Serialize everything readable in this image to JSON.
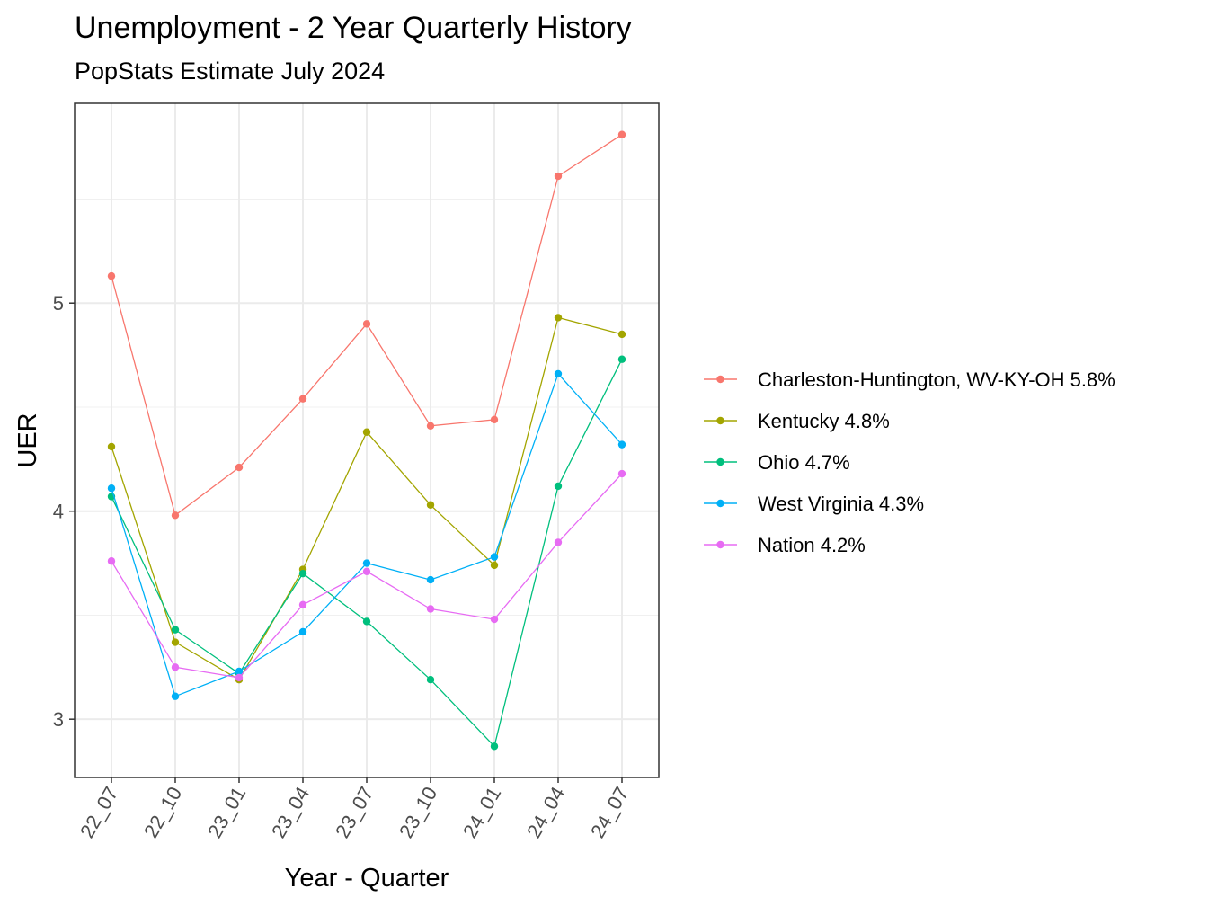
{
  "chart_data": {
    "type": "line",
    "title": "Unemployment - 2 Year Quarterly History",
    "subtitle": "PopStats Estimate July 2024",
    "xlabel": "Year - Quarter",
    "ylabel": "UER",
    "categories": [
      "22_07",
      "22_10",
      "23_01",
      "23_04",
      "23_07",
      "23_10",
      "24_01",
      "24_04",
      "24_07"
    ],
    "y_ticks": [
      3,
      4,
      5
    ],
    "ylim": [
      2.72,
      5.96
    ],
    "grid": true,
    "legend_position": "right",
    "series": [
      {
        "name": "Charleston-Huntington, WV-KY-OH 5.8%",
        "color": "#F8766D",
        "values": [
          5.13,
          3.98,
          4.21,
          4.54,
          4.9,
          4.41,
          4.44,
          5.61,
          5.81
        ]
      },
      {
        "name": "Kentucky 4.8%",
        "color": "#A3A500",
        "values": [
          4.31,
          3.37,
          3.19,
          3.72,
          4.38,
          4.03,
          3.74,
          4.93,
          4.85
        ]
      },
      {
        "name": "Ohio 4.7%",
        "color": "#00BF7D",
        "values": [
          4.07,
          3.43,
          3.22,
          3.7,
          3.47,
          3.19,
          2.87,
          4.12,
          4.73
        ]
      },
      {
        "name": "West Virginia 4.3%",
        "color": "#00B0F6",
        "values": [
          4.11,
          3.11,
          3.23,
          3.42,
          3.75,
          3.67,
          3.78,
          4.66,
          4.32
        ]
      },
      {
        "name": "Nation 4.2%",
        "color": "#E76BF3",
        "values": [
          3.76,
          3.25,
          3.2,
          3.55,
          3.71,
          3.53,
          3.48,
          3.85,
          4.18
        ]
      }
    ]
  }
}
